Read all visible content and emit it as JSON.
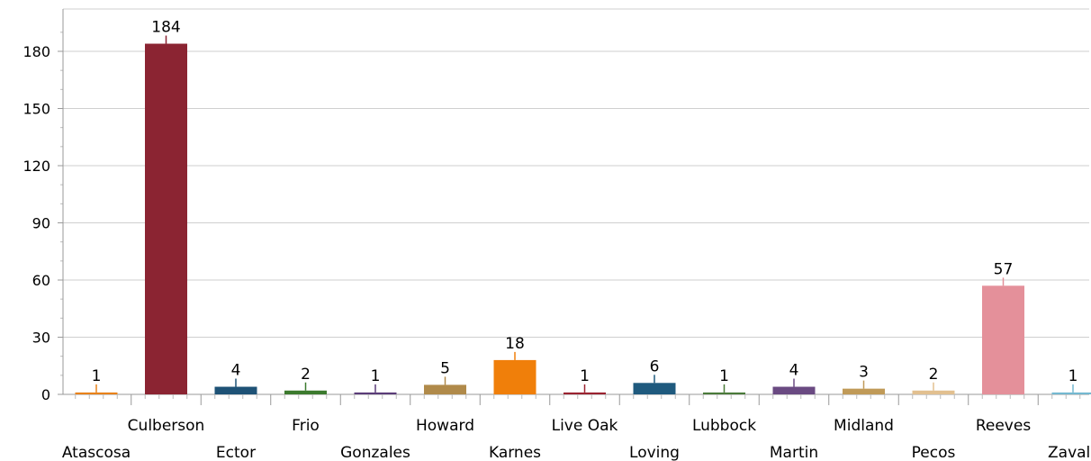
{
  "chart_data": {
    "type": "bar",
    "title": "",
    "xlabel": "",
    "ylabel": "",
    "categories": [
      "Atascosa",
      "Culberson",
      "Ector",
      "Frio",
      "Gonzales",
      "Howard",
      "Karnes",
      "Live Oak",
      "Loving",
      "Lubbock",
      "Martin",
      "Midland",
      "Pecos",
      "Reeves",
      "Zavala"
    ],
    "values": [
      1,
      184,
      4,
      2,
      1,
      5,
      18,
      1,
      6,
      1,
      4,
      3,
      2,
      57,
      1
    ],
    "data_labels": [
      "1",
      "184",
      "4",
      "2",
      "1",
      "5",
      "18",
      "1",
      "6",
      "1",
      "4",
      "3",
      "2",
      "57",
      "1"
    ],
    "bar_colors": [
      "#E8821A",
      "#8B2432",
      "#1E5276",
      "#3C7A2E",
      "#5A3C78",
      "#B08A4A",
      "#F07F0A",
      "#9A2330",
      "#1F5A7E",
      "#4A7A3A",
      "#6A4A82",
      "#C09A58",
      "#E2C090",
      "#E4909A",
      "#74B8D0"
    ],
    "ylim": [
      0,
      200
    ],
    "yticks": [
      0,
      30,
      60,
      90,
      120,
      150,
      180
    ],
    "ytick_labels": [
      "0",
      "30",
      "60",
      "90",
      "120",
      "150",
      "180"
    ],
    "grid": true,
    "legend": "none"
  }
}
